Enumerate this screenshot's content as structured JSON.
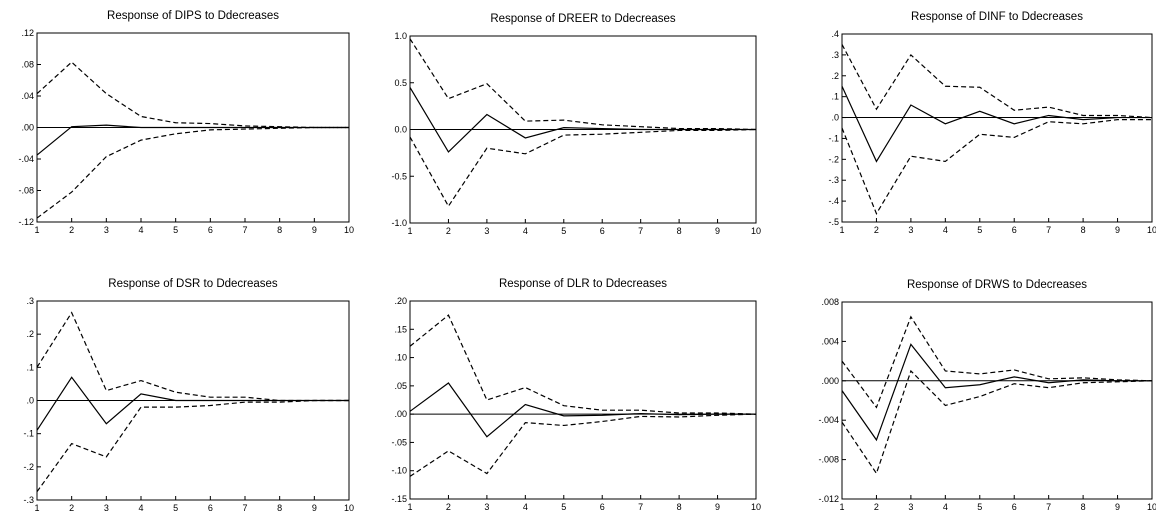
{
  "chart_data": [
    {
      "type": "line",
      "title": "Response of DIPS to Ddecreases",
      "x": [
        1,
        2,
        3,
        4,
        5,
        6,
        7,
        8,
        9,
        10
      ],
      "ylim": [
        -0.12,
        0.12
      ],
      "yticks": [
        0.12,
        0.08,
        0.04,
        0.0,
        -0.04,
        -0.08,
        -0.12
      ],
      "ytick_labels": [
        ".12",
        ".08",
        ".04",
        ".00",
        "-.04",
        "-.08",
        "-.12"
      ],
      "xtick_labels": [
        "1",
        "2",
        "3",
        "4",
        "5",
        "6",
        "7",
        "8",
        "9",
        "10"
      ],
      "series": [
        {
          "style": "solid",
          "values": [
            -0.035,
            0.001,
            0.003,
            0.0,
            0.0,
            0.0,
            0.0,
            0.0,
            0.0,
            0.0
          ]
        },
        {
          "style": "dashed",
          "values": [
            0.043,
            0.083,
            0.043,
            0.014,
            0.006,
            0.005,
            0.002,
            0.001,
            0.0,
            0.0
          ]
        },
        {
          "style": "dashed",
          "values": [
            -0.115,
            -0.082,
            -0.037,
            -0.016,
            -0.008,
            -0.003,
            -0.002,
            -0.001,
            0.0,
            0.0
          ]
        }
      ]
    },
    {
      "type": "line",
      "title": "Response of DREER to Ddecreases",
      "x": [
        1,
        2,
        3,
        4,
        5,
        6,
        7,
        8,
        9,
        10
      ],
      "ylim": [
        -1.0,
        1.0
      ],
      "yticks": [
        1.0,
        0.5,
        0.0,
        -0.5,
        -1.0
      ],
      "ytick_labels": [
        "1.0",
        "0.5",
        "0.0",
        "-0.5",
        "-1.0"
      ],
      "xtick_labels": [
        "1",
        "2",
        "3",
        "4",
        "5",
        "6",
        "7",
        "8",
        "9",
        "10"
      ],
      "series": [
        {
          "style": "solid",
          "values": [
            0.45,
            -0.24,
            0.16,
            -0.09,
            0.02,
            0.01,
            0.0,
            0.0,
            0.0,
            0.0
          ]
        },
        {
          "style": "dashed",
          "values": [
            0.97,
            0.33,
            0.49,
            0.09,
            0.1,
            0.05,
            0.03,
            0.01,
            0.01,
            0.0
          ]
        },
        {
          "style": "dashed",
          "values": [
            -0.08,
            -0.82,
            -0.2,
            -0.26,
            -0.06,
            -0.05,
            -0.03,
            -0.01,
            -0.01,
            0.0
          ]
        }
      ]
    },
    {
      "type": "line",
      "title": "Response of DINF to Ddecreases",
      "x": [
        1,
        2,
        3,
        4,
        5,
        6,
        7,
        8,
        9,
        10
      ],
      "ylim": [
        -0.5,
        0.4
      ],
      "yticks": [
        0.4,
        0.3,
        0.2,
        0.1,
        0.0,
        -0.1,
        -0.2,
        -0.3,
        -0.4,
        -0.5
      ],
      "ytick_labels": [
        ".4",
        ".3",
        ".2",
        ".1",
        ".0",
        "-.1",
        "-.2",
        "-.3",
        "-.4",
        "-.5"
      ],
      "xtick_labels": [
        "1",
        "2",
        "3",
        "4",
        "5",
        "6",
        "7",
        "8",
        "9",
        "10"
      ],
      "series": [
        {
          "style": "solid",
          "values": [
            0.15,
            -0.21,
            0.06,
            -0.03,
            0.03,
            -0.03,
            0.01,
            -0.01,
            0.0,
            0.0
          ]
        },
        {
          "style": "dashed",
          "values": [
            0.35,
            0.04,
            0.3,
            0.15,
            0.145,
            0.035,
            0.05,
            0.01,
            0.01,
            0.0
          ]
        },
        {
          "style": "dashed",
          "values": [
            -0.05,
            -0.46,
            -0.185,
            -0.21,
            -0.08,
            -0.095,
            -0.02,
            -0.03,
            -0.01,
            -0.01
          ]
        }
      ]
    },
    {
      "type": "line",
      "title": "Response of DSR to Ddecreases",
      "x": [
        1,
        2,
        3,
        4,
        5,
        6,
        7,
        8,
        9,
        10
      ],
      "ylim": [
        -0.3,
        0.3
      ],
      "yticks": [
        0.3,
        0.2,
        0.1,
        0.0,
        -0.1,
        -0.2,
        -0.3
      ],
      "ytick_labels": [
        ".3",
        ".2",
        ".1",
        ".0",
        "-.1",
        "-.2",
        "-.3"
      ],
      "xtick_labels": [
        "1",
        "2",
        "3",
        "4",
        "5",
        "6",
        "7",
        "8",
        "9",
        "10"
      ],
      "series": [
        {
          "style": "solid",
          "values": [
            -0.09,
            0.07,
            -0.07,
            0.02,
            0.0,
            0.0,
            0.0,
            0.0,
            0.0,
            0.0
          ]
        },
        {
          "style": "dashed",
          "values": [
            0.1,
            0.265,
            0.03,
            0.06,
            0.025,
            0.01,
            0.01,
            0.0,
            0.0,
            0.0
          ]
        },
        {
          "style": "dashed",
          "values": [
            -0.275,
            -0.13,
            -0.17,
            -0.02,
            -0.02,
            -0.015,
            -0.005,
            -0.005,
            0.0,
            0.0
          ]
        }
      ]
    },
    {
      "type": "line",
      "title": "Response of DLR to Ddecreases",
      "x": [
        1,
        2,
        3,
        4,
        5,
        6,
        7,
        8,
        9,
        10
      ],
      "ylim": [
        -0.15,
        0.2
      ],
      "yticks": [
        0.2,
        0.15,
        0.1,
        0.05,
        0.0,
        -0.05,
        -0.1,
        -0.15
      ],
      "ytick_labels": [
        ".20",
        ".15",
        ".10",
        ".05",
        ".00",
        "-.05",
        "-.10",
        "-.15"
      ],
      "xtick_labels": [
        "1",
        "2",
        "3",
        "4",
        "5",
        "6",
        "7",
        "8",
        "9",
        "10"
      ],
      "series": [
        {
          "style": "solid",
          "values": [
            0.005,
            0.055,
            -0.04,
            0.017,
            -0.003,
            -0.002,
            0.001,
            -0.001,
            0.0,
            0.0
          ]
        },
        {
          "style": "dashed",
          "values": [
            0.12,
            0.175,
            0.025,
            0.047,
            0.015,
            0.007,
            0.007,
            0.002,
            0.002,
            0.0
          ]
        },
        {
          "style": "dashed",
          "values": [
            -0.11,
            -0.065,
            -0.105,
            -0.015,
            -0.02,
            -0.013,
            -0.004,
            -0.005,
            -0.002,
            0.0
          ]
        }
      ]
    },
    {
      "type": "line",
      "title": "Response of DRWS to Ddecreases",
      "x": [
        1,
        2,
        3,
        4,
        5,
        6,
        7,
        8,
        9,
        10
      ],
      "ylim": [
        -0.012,
        0.008
      ],
      "yticks": [
        0.008,
        0.004,
        0.0,
        -0.004,
        -0.008,
        -0.012
      ],
      "ytick_labels": [
        ".008",
        ".004",
        ".000",
        "-.004",
        "-.008",
        "-.012"
      ],
      "xtick_labels": [
        "1",
        "2",
        "3",
        "4",
        "5",
        "6",
        "7",
        "8",
        "9",
        "10"
      ],
      "series": [
        {
          "style": "solid",
          "values": [
            -0.001,
            -0.006,
            0.0037,
            -0.0007,
            -0.0004,
            0.0004,
            -0.0002,
            0.0001,
            0.0,
            0.0
          ]
        },
        {
          "style": "dashed",
          "values": [
            0.002,
            -0.0027,
            0.0065,
            0.001,
            0.0007,
            0.0011,
            0.0002,
            0.0003,
            0.0001,
            0.0
          ]
        },
        {
          "style": "dashed",
          "values": [
            -0.0042,
            -0.0094,
            0.001,
            -0.0025,
            -0.0016,
            -0.0003,
            -0.0007,
            -0.0002,
            -0.0001,
            0.0
          ]
        }
      ]
    }
  ]
}
